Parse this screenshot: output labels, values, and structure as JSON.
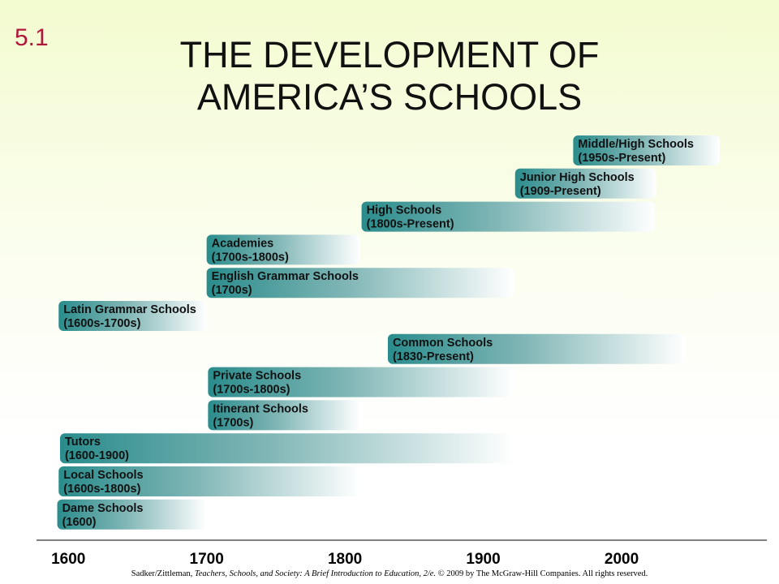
{
  "slide_number": "5.1",
  "title_line1": "THE DEVELOPMENT OF",
  "title_line2": "AMERICA’S SCHOOLS",
  "footer": {
    "authors": "Sadker/Zittleman,",
    "book_title": "Teachers, Schools, and Society: A Brief Introduction to Education, 2/e.",
    "copyright": "© 2009 by The McGraw-Hill Companies. All rights reserved."
  },
  "colors": {
    "bar_start": "#2a8c8c",
    "bar_end": "#ffffff",
    "axis": "#000000",
    "slide_number": "#b0183a"
  },
  "chart_data": {
    "type": "gantt",
    "title": "",
    "xlabel": "",
    "ylabel": "",
    "xlim": [
      1577,
      2105
    ],
    "x_ticks": [
      1600,
      1700,
      1800,
      1900,
      2000
    ],
    "bars": [
      {
        "line1": "Middle/High Schools",
        "line2": "(1950s-Present)",
        "start": 1965,
        "end": 2071
      },
      {
        "line1": "Junior High Schools",
        "line2": "(1909-Present)",
        "start": 1923,
        "end": 2025
      },
      {
        "line1": "High Schools",
        "line2": "(1800s-Present)",
        "start": 1812,
        "end": 2024
      },
      {
        "line1": "Academies",
        "line2": "(1700s-1800s)",
        "start": 1700,
        "end": 1811
      },
      {
        "line1": "English Grammar Schools",
        "line2": "(1700s)",
        "start": 1700,
        "end": 1922
      },
      {
        "line1": "Latin Grammar Schools",
        "line2": "(1600s-1700s)",
        "start": 1593,
        "end": 1700
      },
      {
        "line1": "Common Schools",
        "line2": "(1830-Present)",
        "start": 1831,
        "end": 2046
      },
      {
        "line1": "Private Schools",
        "line2": "(1700s-1800s)",
        "start": 1701,
        "end": 1922
      },
      {
        "line1": "Itinerant Schools",
        "line2": "(1700s)",
        "start": 1701,
        "end": 1811
      },
      {
        "line1": "Tutors",
        "line2": "(1600-1900)",
        "start": 1594,
        "end": 1922
      },
      {
        "line1": "Local Schools",
        "line2": "(1600s-1800s)",
        "start": 1593,
        "end": 1811
      },
      {
        "line1": "Dame Schools",
        "line2": "(1600)",
        "start": 1592,
        "end": 1700
      }
    ]
  }
}
